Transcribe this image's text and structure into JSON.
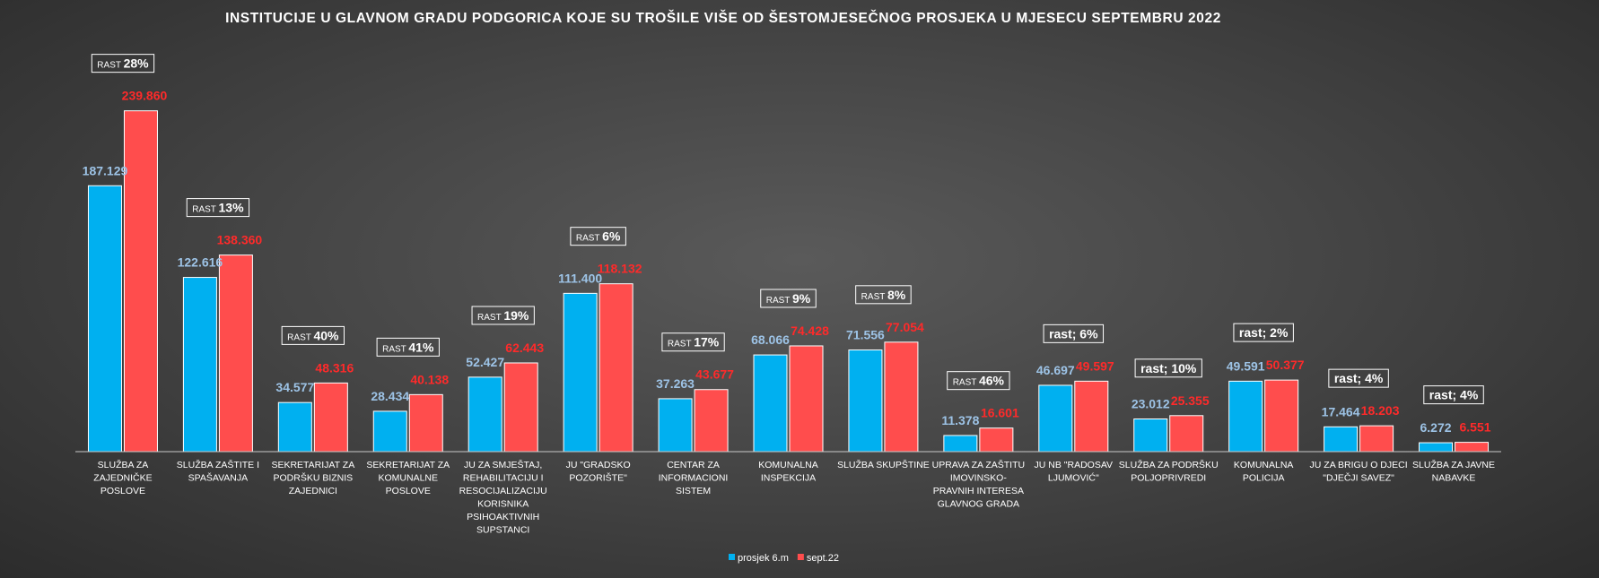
{
  "colors": {
    "series_a": "#00b0f0",
    "series_b": "#ff4d4d",
    "label_a": "#9dc3e6",
    "label_b": "#ff2a2a",
    "text": "#ffffff"
  },
  "chart_data": {
    "type": "bar",
    "title": "INSTITUCIJE U GLAVNOM GRADU PODGORICA KOJE SU TROŠILE VIŠE OD ŠESTOMJESEČNOG PROSJEKA U MJESECU SEPTEMBRU 2022",
    "xlabel": "",
    "ylabel": "",
    "ylim": [
      0,
      280000
    ],
    "grid": false,
    "legend_position": "bottom-center",
    "categories": [
      [
        "SLUŽBA ZA",
        "ZAJEDNIČKE",
        "POSLOVE"
      ],
      [
        "SLUŽBA ZAŠTITE I",
        "SPAŠAVANJA"
      ],
      [
        "SEKRETARIJAT ZA",
        "PODRŠKU BIZNIS",
        "ZAJEDNICI"
      ],
      [
        "SEKRETARIJAT ZA",
        "KOMUNALNE",
        "POSLOVE"
      ],
      [
        "JU ZA SMJEŠTAJ,",
        "REHABILITACIJU I",
        "RESOCIJALIZACIJU",
        "KORISNIKA",
        "PSIHOAKTIVNIH",
        "SUPSTANCI"
      ],
      [
        "JU \"GRADSKO",
        "POZORIŠTE\""
      ],
      [
        "CENTAR ZA",
        "INFORMACIONI",
        "SISTEM"
      ],
      [
        "KOMUNALNA",
        "INSPEKCIJA"
      ],
      [
        "SLUŽBA SKUPŠTINE"
      ],
      [
        "UPRAVA ZA ZAŠTITU",
        "IMOVINSKO-",
        "PRAVNIH INTERESA",
        "GLAVNOG GRADA"
      ],
      [
        "JU NB \"RADOSAV",
        "LJUMOVIĆ\""
      ],
      [
        "SLUŽBA ZA PODRŠKU",
        "POLJOPRIVREDI"
      ],
      [
        "KOMUNALNA",
        "POLICIJA"
      ],
      [
        "JU ZA BRIGU O DJECI",
        "\"DJEČJI SAVEZ\""
      ],
      [
        "SLUŽBA ZA JAVNE",
        "NABAVKE"
      ]
    ],
    "series": [
      {
        "name": "prosjek 6.m",
        "values": [
          187129,
          122616,
          34577,
          28434,
          52427,
          111400,
          37263,
          68066,
          71556,
          11378,
          46697,
          23012,
          49591,
          17464,
          6272
        ],
        "labels": [
          "187.129",
          "122.616",
          "34.577",
          "28.434",
          "52.427",
          "111.400",
          "37.263",
          "68.066",
          "71.556",
          "11.378",
          "46.697",
          "23.012",
          "49.591",
          "17.464",
          "6.272"
        ]
      },
      {
        "name": "sept.22",
        "values": [
          239860,
          138360,
          48316,
          40138,
          62443,
          118132,
          43677,
          74428,
          77054,
          16601,
          49597,
          25355,
          50377,
          18203,
          6551
        ],
        "labels": [
          "239.860",
          "138.360",
          "48.316",
          "40.138",
          "62.443",
          "118.132",
          "43.677",
          "74.428",
          "77.054",
          "16.601",
          "49.597",
          "25.355",
          "50.377",
          "18.203",
          "6.551"
        ]
      }
    ],
    "annotations": [
      {
        "prefix": "RAST",
        "value": "28%",
        "style": "small-caps"
      },
      {
        "prefix": "RAST",
        "value": "13%",
        "style": "small-caps"
      },
      {
        "prefix": "RAST",
        "value": "40%",
        "style": "small-caps"
      },
      {
        "prefix": "RAST",
        "value": "41%",
        "style": "small-caps"
      },
      {
        "prefix": "RAST",
        "value": "19%",
        "style": "small-caps"
      },
      {
        "prefix": "RAST",
        "value": "6%",
        "style": "small-caps"
      },
      {
        "prefix": "RAST",
        "value": "17%",
        "style": "small-caps"
      },
      {
        "prefix": "RAST",
        "value": "9%",
        "style": "small-caps"
      },
      {
        "prefix": "RAST",
        "value": "8%",
        "style": "small-caps"
      },
      {
        "prefix": "RAST",
        "value": "46%",
        "style": "small-caps"
      },
      {
        "prefix": "rast;",
        "value": "6%",
        "style": "bold"
      },
      {
        "prefix": "rast;",
        "value": "10%",
        "style": "bold"
      },
      {
        "prefix": "rast;",
        "value": "2%",
        "style": "bold"
      },
      {
        "prefix": "rast;",
        "value": "4%",
        "style": "bold"
      },
      {
        "prefix": "rast;",
        "value": "4%",
        "style": "bold"
      }
    ]
  }
}
